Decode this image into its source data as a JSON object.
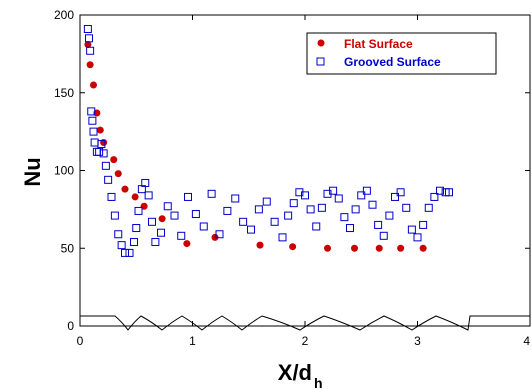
{
  "chart_data": {
    "type": "scatter",
    "xlabel": "X/d",
    "xlabel_sub": "h",
    "ylabel": "Nu",
    "xlim": [
      0,
      4
    ],
    "ylim": [
      0,
      200
    ],
    "x_ticks": [
      "0",
      "1",
      "2",
      "3",
      "4"
    ],
    "y_ticks": [
      "0",
      "50",
      "100",
      "150",
      "200"
    ],
    "grid": false,
    "legend_position": "top-right",
    "series": [
      {
        "name": "Flat Surface",
        "marker": "filled-circle",
        "color": "#cc0000",
        "x": [
          0.07,
          0.09,
          0.12,
          0.15,
          0.18,
          0.21,
          0.3,
          0.34,
          0.4,
          0.49,
          0.57,
          0.73,
          0.95,
          1.2,
          1.6,
          1.89,
          2.2,
          2.44,
          2.66,
          2.85,
          3.05
        ],
        "y": [
          181,
          168,
          155,
          137,
          126,
          118,
          107,
          98,
          88,
          83,
          77,
          69,
          53,
          57,
          52,
          51,
          50,
          50,
          50,
          50,
          50
        ]
      },
      {
        "name": "Grooved Surface",
        "marker": "open-square",
        "color": "#0000cc",
        "x": [
          0.07,
          0.08,
          0.09,
          0.1,
          0.11,
          0.12,
          0.13,
          0.15,
          0.17,
          0.19,
          0.21,
          0.23,
          0.25,
          0.28,
          0.31,
          0.34,
          0.37,
          0.4,
          0.44,
          0.48,
          0.5,
          0.52,
          0.55,
          0.58,
          0.61,
          0.64,
          0.67,
          0.72,
          0.78,
          0.84,
          0.9,
          0.96,
          1.03,
          1.1,
          1.17,
          1.24,
          1.31,
          1.38,
          1.45,
          1.52,
          1.59,
          1.66,
          1.73,
          1.8,
          1.85,
          1.9,
          1.95,
          2.0,
          2.05,
          2.1,
          2.15,
          2.2,
          2.25,
          2.3,
          2.35,
          2.4,
          2.45,
          2.5,
          2.55,
          2.6,
          2.65,
          2.7,
          2.75,
          2.8,
          2.85,
          2.9,
          2.95,
          3.0,
          3.05,
          3.1,
          3.15,
          3.2,
          3.25,
          3.28
        ],
        "y": [
          191,
          185,
          177,
          138,
          132,
          125,
          118,
          112,
          112,
          117,
          111,
          103,
          94,
          83,
          71,
          59,
          52,
          47,
          47,
          54,
          63,
          74,
          88,
          92,
          84,
          67,
          54,
          60,
          77,
          71,
          58,
          83,
          72,
          64,
          85,
          59,
          74,
          82,
          67,
          62,
          75,
          80,
          67,
          57,
          71,
          79,
          86,
          84,
          75,
          64,
          76,
          85,
          87,
          82,
          70,
          63,
          75,
          84,
          87,
          78,
          65,
          58,
          71,
          83,
          86,
          76,
          62,
          57,
          65,
          76,
          83,
          87,
          86,
          86
        ]
      }
    ]
  }
}
